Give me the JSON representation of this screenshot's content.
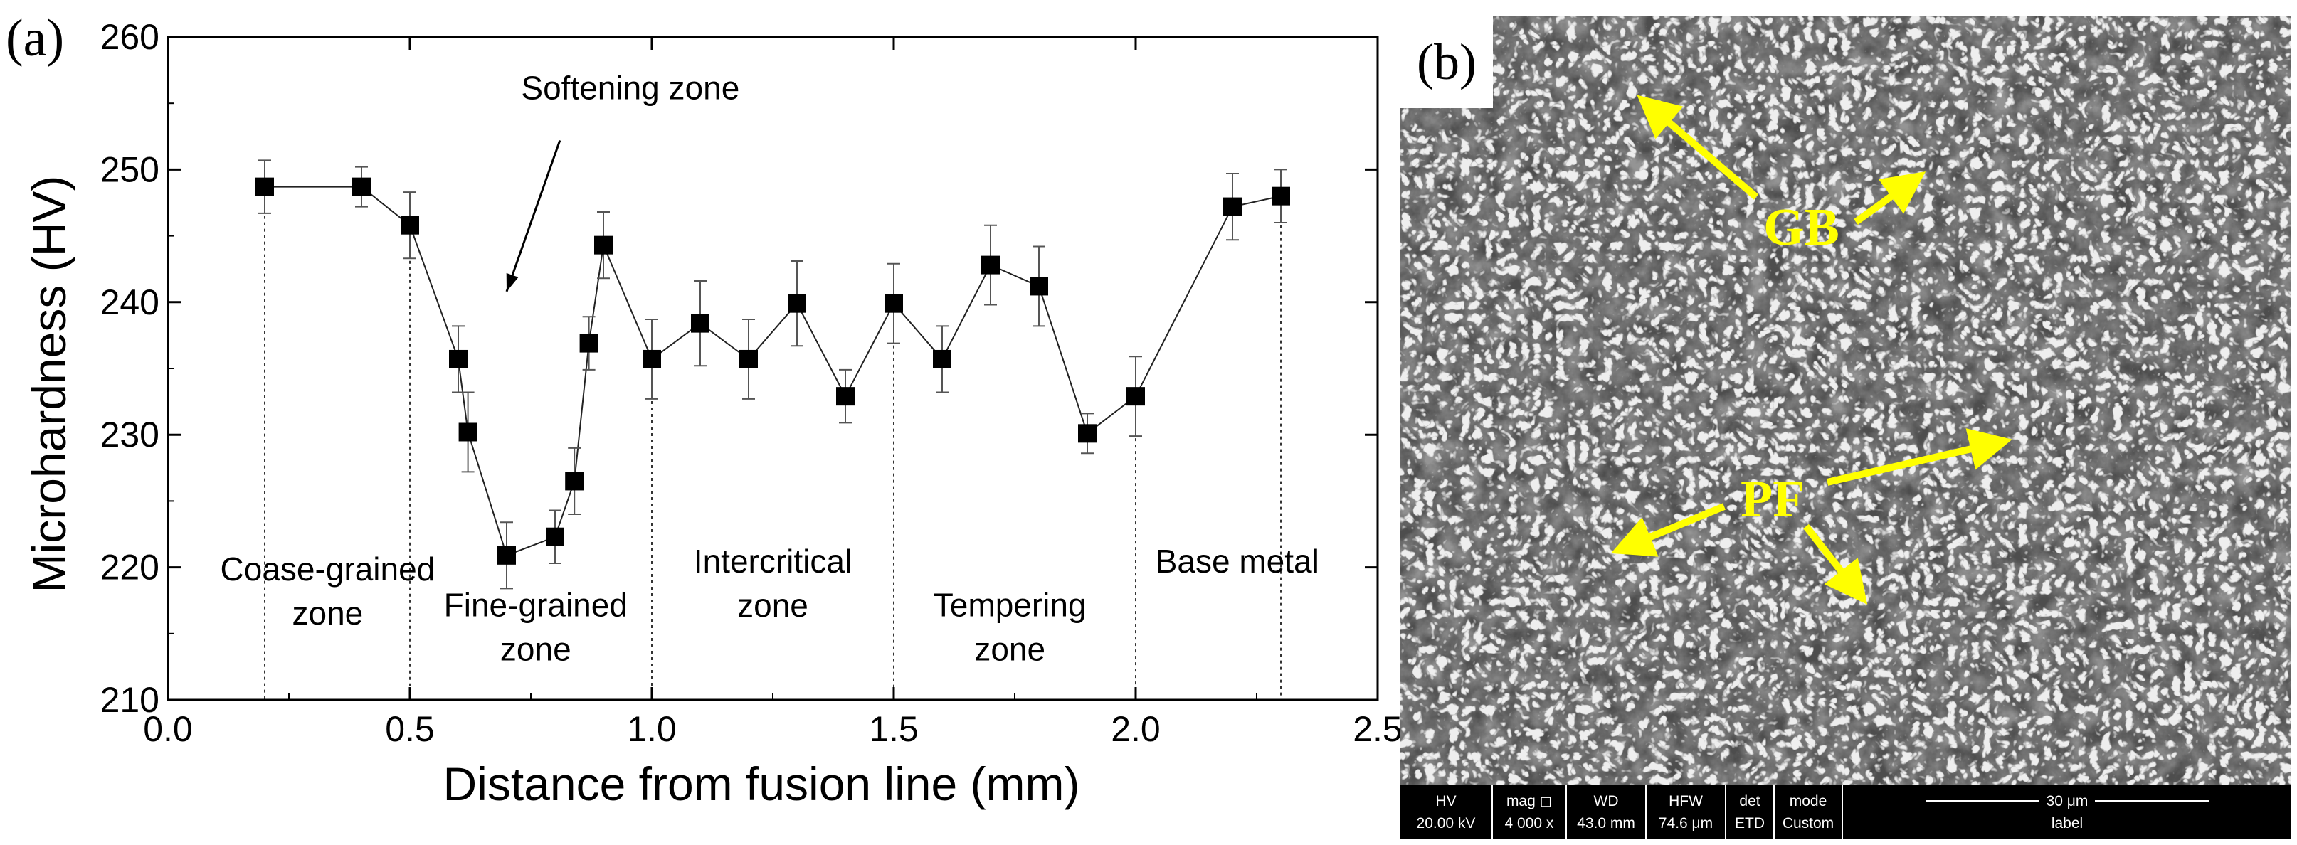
{
  "panel_a": {
    "letter": "(a)",
    "chart_data": {
      "type": "line",
      "xlabel": "Distance from fusion line (mm)",
      "ylabel": "Microhardness (HV)",
      "xlim": [
        0.0,
        2.5
      ],
      "ylim": [
        210,
        260
      ],
      "xticks": [
        "0.0",
        "0.5",
        "1.0",
        "1.5",
        "2.0",
        "2.5"
      ],
      "yticks": [
        "210",
        "220",
        "230",
        "240",
        "250",
        "260"
      ],
      "grid": false,
      "series": [
        {
          "x": [
            0.2,
            0.4,
            0.5,
            0.6,
            0.62,
            0.7,
            0.8,
            0.84,
            0.87,
            0.9,
            1.0,
            1.1,
            1.2,
            1.3,
            1.4,
            1.5,
            1.6,
            1.7,
            1.8,
            1.9,
            2.0,
            2.2,
            2.3
          ],
          "y": [
            248.7,
            248.7,
            245.8,
            235.7,
            230.2,
            220.9,
            222.3,
            226.5,
            236.9,
            244.3,
            235.7,
            238.4,
            235.7,
            239.9,
            232.9,
            239.9,
            235.7,
            242.8,
            241.2,
            230.1,
            232.9,
            247.2,
            248.0
          ],
          "error": [
            2.0,
            1.5,
            2.5,
            2.5,
            3.0,
            2.5,
            2.0,
            2.5,
            2.0,
            2.5,
            3.0,
            3.2,
            3.0,
            3.2,
            2.0,
            3.0,
            2.5,
            3.0,
            3.0,
            1.5,
            3.0,
            2.5,
            2.0
          ]
        }
      ],
      "zone_boundaries_x": [
        0.2,
        0.5,
        1.0,
        1.5,
        2.0,
        2.3
      ],
      "zones": [
        {
          "lines": [
            "Coase-grained",
            "zone"
          ],
          "x": 0.33,
          "y": 219.0
        },
        {
          "lines": [
            "Fine-grained",
            "zone"
          ],
          "x": 0.76,
          "y": 216.3
        },
        {
          "lines": [
            "Intercritical",
            "zone"
          ],
          "x": 1.25,
          "y": 219.6
        },
        {
          "lines": [
            "Tempering",
            "zone"
          ],
          "x": 1.74,
          "y": 216.3
        },
        {
          "lines": [
            "Base metal"
          ],
          "x": 2.21,
          "y": 219.6
        }
      ],
      "annotation": {
        "text": "Softening zone",
        "text_x": 0.73,
        "text_y": 255.3,
        "arrow_from": [
          0.81,
          252.2
        ],
        "arrow_to": [
          0.7,
          240.8
        ]
      }
    }
  },
  "panel_b": {
    "letter": "(b)",
    "labels": {
      "gb": "GB",
      "pf": "PF"
    },
    "arrow_color": "#ffff00",
    "info_bar": {
      "hv_label": "HV",
      "hv_value": "20.00 kV",
      "mag_label": "mag ◻",
      "mag_value": "4 000 x",
      "wd_label": "WD",
      "wd_value": "43.0 mm",
      "hfw_label": "HFW",
      "hfw_value": "74.6 μm",
      "det_label": "det",
      "det_value": "ETD",
      "mode_label": "mode",
      "mode_value": "Custom",
      "scale_label": "30 μm",
      "bottom_label": "label"
    }
  }
}
